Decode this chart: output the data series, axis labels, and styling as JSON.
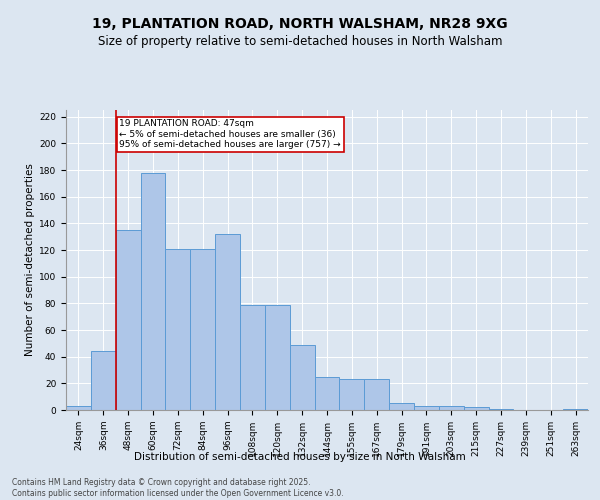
{
  "title1": "19, PLANTATION ROAD, NORTH WALSHAM, NR28 9XG",
  "title2": "Size of property relative to semi-detached houses in North Walsham",
  "xlabel": "Distribution of semi-detached houses by size in North Walsham",
  "ylabel": "Number of semi-detached properties",
  "categories": [
    "24sqm",
    "36sqm",
    "48sqm",
    "60sqm",
    "72sqm",
    "84sqm",
    "96sqm",
    "108sqm",
    "120sqm",
    "132sqm",
    "144sqm",
    "155sqm",
    "167sqm",
    "179sqm",
    "191sqm",
    "203sqm",
    "215sqm",
    "227sqm",
    "239sqm",
    "251sqm",
    "263sqm"
  ],
  "values": [
    3,
    44,
    135,
    178,
    121,
    121,
    132,
    79,
    79,
    49,
    25,
    23,
    23,
    5,
    3,
    3,
    2,
    1,
    0,
    0,
    1
  ],
  "bar_color": "#aec6e8",
  "bar_edge_color": "#5b9bd5",
  "annotation_title": "19 PLANTATION ROAD: 47sqm",
  "annotation_line1": "← 5% of semi-detached houses are smaller (36)",
  "annotation_line2": "95% of semi-detached houses are larger (757) →",
  "annotation_box_color": "#ffffff",
  "annotation_box_edge_color": "#cc0000",
  "vline_color": "#cc0000",
  "vline_x": 1.5,
  "ylim": [
    0,
    225
  ],
  "yticks": [
    0,
    20,
    40,
    60,
    80,
    100,
    120,
    140,
    160,
    180,
    200,
    220
  ],
  "footer1": "Contains HM Land Registry data © Crown copyright and database right 2025.",
  "footer2": "Contains public sector information licensed under the Open Government Licence v3.0.",
  "bg_color": "#dce6f1",
  "plot_bg_color": "#dce6f1",
  "title_fontsize": 10,
  "subtitle_fontsize": 8.5,
  "tick_fontsize": 6.5,
  "label_fontsize": 7.5,
  "footer_fontsize": 5.5,
  "ann_fontsize": 6.5
}
